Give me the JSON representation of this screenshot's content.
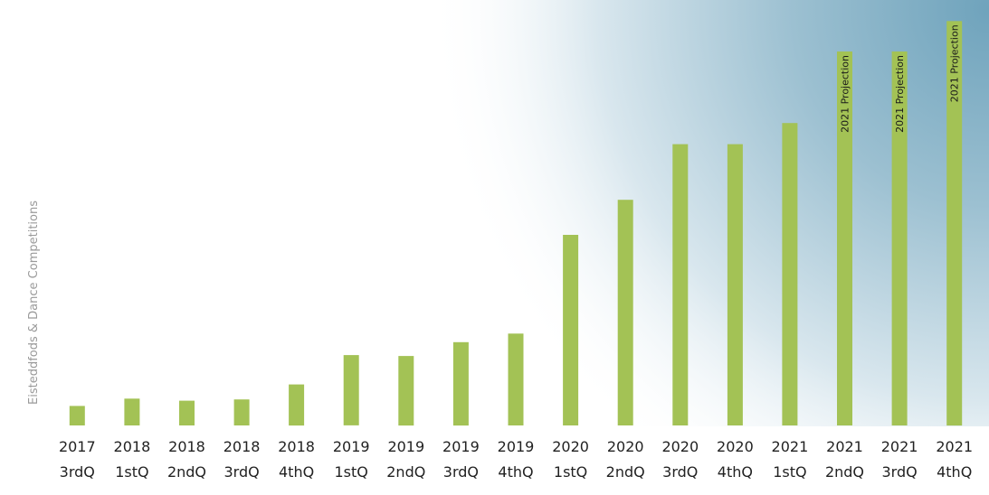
{
  "chart_data": {
    "type": "bar",
    "title": "",
    "xlabel": "",
    "ylabel": "Eisteddfods & Dance Competitions",
    "ylim": [
      0,
      1
    ],
    "grid": false,
    "legend": "none",
    "categories": [
      [
        "2017",
        "3rdQ"
      ],
      [
        "2018",
        "1stQ"
      ],
      [
        "2018",
        "2ndQ"
      ],
      [
        "2018",
        "3rdQ"
      ],
      [
        "2018",
        "4thQ"
      ],
      [
        "2019",
        "1stQ"
      ],
      [
        "2019",
        "2ndQ"
      ],
      [
        "2019",
        "3rdQ"
      ],
      [
        "2019",
        "4thQ"
      ],
      [
        "2020",
        "1stQ"
      ],
      [
        "2020",
        "2ndQ"
      ],
      [
        "2020",
        "3rdQ"
      ],
      [
        "2020",
        "4thQ"
      ],
      [
        "2021",
        "1stQ"
      ],
      [
        "2021",
        "2ndQ"
      ],
      [
        "2021",
        "3rdQ"
      ],
      [
        "2021",
        "4thQ"
      ]
    ],
    "values": [
      0.048,
      0.066,
      0.061,
      0.064,
      0.101,
      0.173,
      0.171,
      0.205,
      0.226,
      0.469,
      0.555,
      0.692,
      0.692,
      0.744,
      0.92,
      0.92,
      0.995
    ],
    "annotations": [
      "",
      "",
      "",
      "",
      "",
      "",
      "",
      "",
      "",
      "",
      "",
      "",
      "",
      "",
      "2021 Projection",
      "2021 Projection",
      "2021 Projection"
    ],
    "colors": {
      "bar": "#a3c255",
      "background_glow": "#6fa3bc",
      "label": "#222222",
      "ylabel": "#9a9a9a"
    }
  }
}
